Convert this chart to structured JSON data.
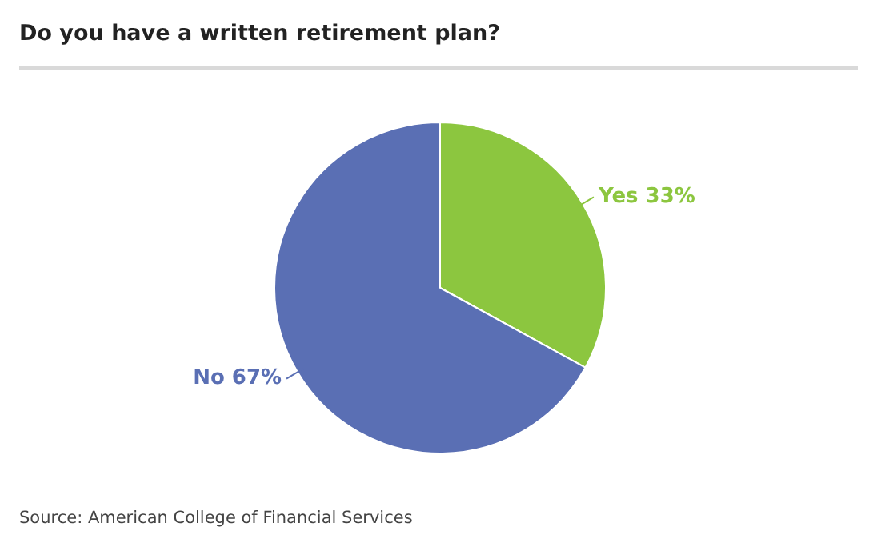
{
  "chart_data": {
    "type": "pie",
    "title": "Do you have a written retirement plan?",
    "categories": [
      "Yes",
      "No"
    ],
    "values": [
      33,
      67
    ],
    "value_labels": [
      "33%",
      "67%"
    ],
    "colors": [
      "#8cc63f",
      "#5a6fb4"
    ],
    "annotations": [
      "Source: American College of Financial Services"
    ],
    "legend": false
  }
}
